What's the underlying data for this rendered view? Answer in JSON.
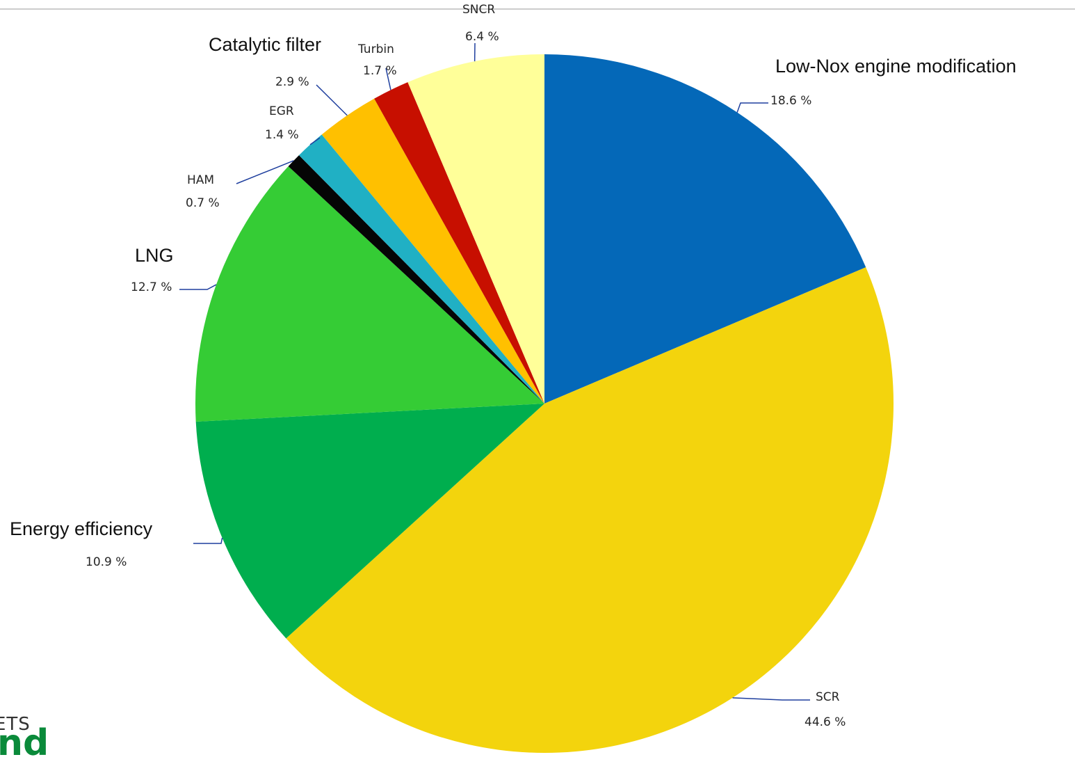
{
  "chart_data": {
    "type": "pie",
    "title": "",
    "slices": [
      {
        "name": "Low-Nox engine modification",
        "value": 18.6,
        "label": "18.6 %",
        "color": "#0468b8"
      },
      {
        "name": "SCR",
        "value": 44.6,
        "label": "44.6 %",
        "color": "#f3d40d"
      },
      {
        "name": "Energy efficiency",
        "value": 10.9,
        "label": "10.9 %",
        "color": "#00ae4e"
      },
      {
        "name": "LNG",
        "value": 12.7,
        "label": "12.7 %",
        "color": "#35cc35"
      },
      {
        "name": "HAM",
        "value": 0.7,
        "label": "0.7 %",
        "color": "#050505"
      },
      {
        "name": "EGR",
        "value": 1.4,
        "label": "1.4 %",
        "color": "#20b0c4"
      },
      {
        "name": "Catalytic filter",
        "value": 2.9,
        "label": "2.9 %",
        "color": "#ffc000"
      },
      {
        "name": "Turbin",
        "value": 1.7,
        "label": "1.7 %",
        "color": "#c70f00"
      },
      {
        "name": "SNCR",
        "value": 6.4,
        "label": "6.4 %",
        "color": "#ffff99"
      }
    ],
    "leader_line_color": "#1f3f9e"
  },
  "logo": {
    "top_text": "ETS",
    "bottom_text": "nd"
  }
}
